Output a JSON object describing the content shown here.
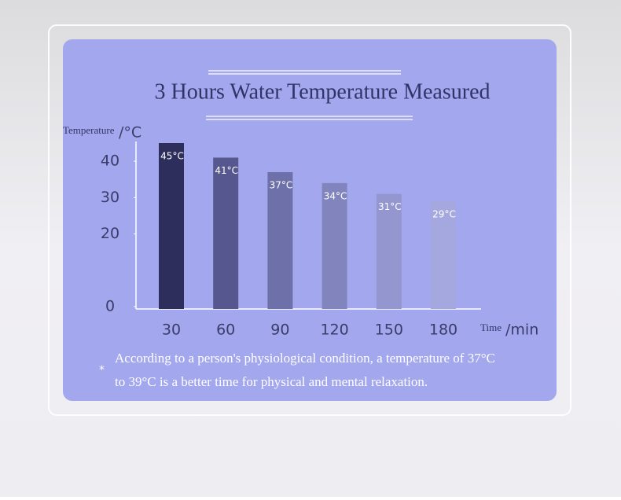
{
  "chart_data": {
    "type": "bar",
    "title": "3 Hours Water Temperature Measured",
    "y_label": "Temperature",
    "y_unit": "/°C",
    "x_label": "Time",
    "x_unit": "/min",
    "categories": [
      "30",
      "60",
      "90",
      "120",
      "150",
      "180"
    ],
    "values": [
      45,
      41,
      37,
      34,
      31,
      29
    ],
    "value_labels": [
      "45°C",
      "41°C",
      "37°C",
      "34°C",
      "31°C",
      "29°C"
    ],
    "colors": [
      "#2d2e5c",
      "#55578e",
      "#6e71a9",
      "#8285bd",
      "#9497cf",
      "#a4a8df"
    ],
    "ylim": [
      0,
      45
    ],
    "yticks": [
      0,
      20,
      30,
      40
    ],
    "note_marker": "*",
    "note": [
      "According to a person's physiological condition, a temperature of 37°C",
      "to 39°C is a better time for physical and mental relaxation."
    ]
  }
}
